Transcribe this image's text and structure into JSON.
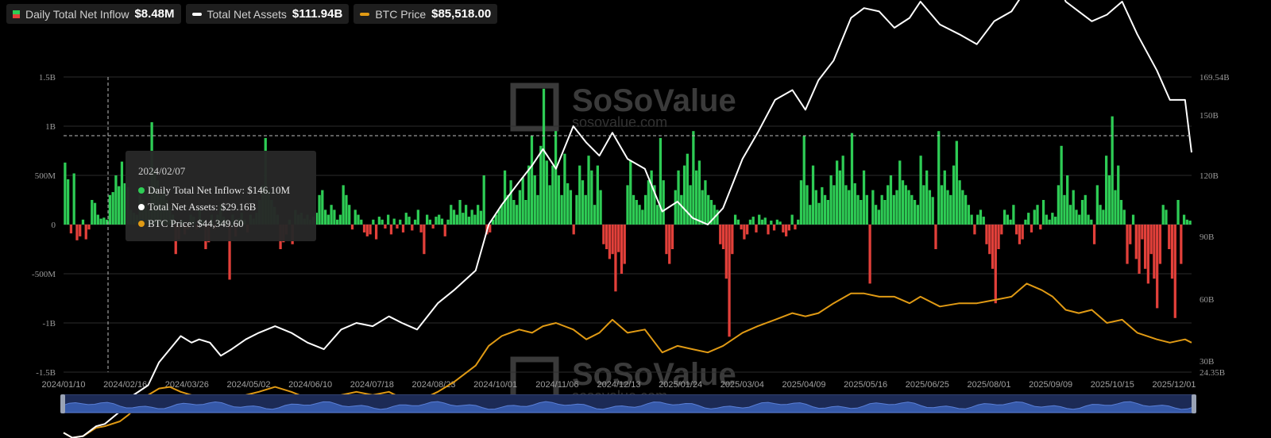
{
  "legend": {
    "inflow_label": "Daily Total Net Inflow",
    "inflow_value": "$8.48M",
    "assets_label": "Total Net Assets",
    "assets_value": "$111.94B",
    "btc_label": "BTC Price",
    "btc_value": "$85,518.00"
  },
  "watermark": {
    "brand": "SoSoValue",
    "url": "sosovalue.com"
  },
  "tooltip": {
    "date": "2024/02/07",
    "inflow": "Daily Total Net Inflow: $146.10M",
    "assets": "Total Net Assets: $29.16B",
    "btc": "BTC Price: $44,349.60"
  },
  "colors": {
    "inflow_positive": "#2ecc55",
    "inflow_negative": "#e2403a",
    "assets_line": "#ffffff",
    "btc_line": "#e09a14",
    "scroller": "#1c2a55"
  },
  "chart_data": {
    "type": "bar",
    "x_ticks": [
      "2024/01/10",
      "2024/02/16",
      "2024/03/26",
      "2024/05/02",
      "2024/06/10",
      "2024/07/18",
      "2024/08/23",
      "2024/10/01",
      "2024/11/06",
      "2024/12/13",
      "2025/01/24",
      "2025/03/04",
      "2025/04/09",
      "2025/05/16",
      "2025/06/25",
      "2025/08/01",
      "2025/09/09",
      "2025/10/15",
      "2025/12/01"
    ],
    "left_axis": {
      "ticks": [
        "1.5B",
        "1B",
        "500M",
        "0",
        "-500M",
        "-1B",
        "-1.5B"
      ],
      "values": [
        1.5,
        1,
        0.5,
        0,
        -0.5,
        -1,
        -1.5
      ],
      "unit": "B USD"
    },
    "right_axis": {
      "ticks": [
        "169.54B",
        "150B",
        "120B",
        "90B",
        "60B",
        "30B",
        "24.35B"
      ],
      "values": [
        169.54,
        150,
        120,
        90,
        60,
        30,
        24.35
      ],
      "unit": "B USD"
    },
    "series": [
      {
        "name": "Daily Total Net Inflow",
        "type": "bar",
        "axis": "left",
        "unit": "B USD",
        "values": [
          0.63,
          0.46,
          -0.09,
          0.52,
          -0.16,
          -0.12,
          0.05,
          -0.15,
          -0.05,
          0.25,
          0.22,
          0.1,
          0.06,
          0.07,
          0.05,
          0.3,
          0.33,
          0.5,
          0.39,
          0.64,
          0.42,
          0.38,
          0.15,
          0.12,
          0.1,
          0.3,
          0.25,
          0.2,
          0.15,
          1.04,
          0.55,
          0.45,
          0.3,
          0.35,
          0.25,
          0.18,
          0.1,
          -0.3,
          -0.15,
          0.05,
          -0.1,
          -0.05,
          0.1,
          0.08,
          -0.05,
          0.15,
          0.05,
          -0.25,
          -0.18,
          0.1,
          -0.05,
          0.1,
          0.2,
          0.08,
          0.05,
          -0.56,
          0.1,
          -0.12,
          0.06,
          0.12,
          0.05,
          -0.08,
          0.1,
          0.06,
          0.12,
          0.25,
          0.4,
          0.88,
          0.35,
          0.25,
          0.18,
          0.1,
          -0.25,
          -0.18,
          -0.1,
          0.05,
          -0.2,
          0.15,
          0.1,
          0.12,
          0.06,
          0.1,
          0.05,
          0.08,
          0.12,
          0.3,
          0.35,
          0.15,
          0.1,
          0.2,
          0.15,
          0.05,
          0.1,
          0.4,
          0.3,
          0.2,
          -0.05,
          0.15,
          0.1,
          0.05,
          -0.08,
          -0.12,
          -0.1,
          0.05,
          -0.15,
          0.08,
          0.05,
          -0.04,
          0.1,
          -0.1,
          0.06,
          -0.04,
          0.05,
          -0.08,
          0.12,
          0.08,
          -0.06,
          0.05,
          0.15,
          -0.08,
          -0.3,
          0.1,
          0.05,
          -0.04,
          0.08,
          0.1,
          0.06,
          -0.12,
          0.05,
          0.2,
          0.15,
          0.1,
          0.25,
          0.12,
          0.2,
          0.08,
          0.15,
          0.1,
          0.2,
          0.14,
          0.5,
          -0.1,
          -0.08,
          0.05,
          0.1,
          0.15,
          0.2,
          0.55,
          0.3,
          0.45,
          0.25,
          0.2,
          0.35,
          0.48,
          0.25,
          0.6,
          0.9,
          0.5,
          0.3,
          0.8,
          1.38,
          0.65,
          0.4,
          0.6,
          0.95,
          0.5,
          0.3,
          0.72,
          0.42,
          0.35,
          -0.1,
          0.3,
          0.6,
          0.45,
          0.3,
          0.7,
          0.55,
          0.2,
          0.6,
          0.35,
          -0.2,
          -0.25,
          -0.35,
          -0.3,
          -0.68,
          -0.28,
          -0.5,
          -0.4,
          0.4,
          0.65,
          0.3,
          0.25,
          0.2,
          0.15,
          0.3,
          0.45,
          0.55,
          0.4,
          0.2,
          0.88,
          0.45,
          -0.3,
          -0.4,
          -0.25,
          0.35,
          0.55,
          0.3,
          0.6,
          0.72,
          0.4,
          0.95,
          0.55,
          0.65,
          0.35,
          0.45,
          0.3,
          0.25,
          0.2,
          0.15,
          -0.2,
          -0.25,
          -0.55,
          -1.14,
          -0.3,
          0.1,
          0.05,
          -0.05,
          -0.15,
          -0.1,
          0.05,
          0.08,
          -0.08,
          0.1,
          0.05,
          0.07,
          -0.1,
          0.04,
          -0.06,
          0.05,
          0.03,
          -0.08,
          -0.12,
          -0.06,
          0.1,
          -0.05,
          0.05,
          0.45,
          0.9,
          0.4,
          0.2,
          0.6,
          0.35,
          0.22,
          0.38,
          0.3,
          0.25,
          0.5,
          0.4,
          0.65,
          0.55,
          0.7,
          0.4,
          0.35,
          0.93,
          0.42,
          0.3,
          0.25,
          0.55,
          0.3,
          -0.6,
          0.35,
          0.2,
          0.15,
          0.3,
          0.25,
          0.4,
          0.5,
          0.3,
          0.35,
          0.65,
          0.45,
          0.4,
          0.35,
          0.3,
          0.25,
          0.2,
          0.7,
          0.4,
          0.55,
          0.35,
          0.28,
          -0.25,
          0.95,
          0.4,
          0.55,
          0.35,
          0.3,
          0.6,
          0.85,
          0.45,
          0.35,
          0.3,
          0.2,
          0.1,
          -0.1,
          0.1,
          0.15,
          0.08,
          -0.2,
          -0.3,
          -0.45,
          -0.8,
          -0.25,
          -0.1,
          0.15,
          0.1,
          0.05,
          0.2,
          -0.1,
          -0.2,
          -0.15,
          0.05,
          0.12,
          -0.08,
          0.15,
          0.2,
          -0.05,
          0.25,
          0.1,
          0.05,
          0.12,
          0.08,
          0.4,
          0.8,
          0.3,
          0.5,
          0.2,
          0.35,
          0.15,
          0.1,
          0.25,
          0.3,
          0.1,
          0.05,
          -0.2,
          0.4,
          0.2,
          0.15,
          0.7,
          0.5,
          1.1,
          0.35,
          0.6,
          0.25,
          0.15,
          -0.4,
          -0.2,
          0.1,
          -0.35,
          -0.5,
          -0.15,
          -0.45,
          -0.6,
          -0.3,
          -0.55,
          -0.85,
          -0.4,
          0.2,
          0.15,
          -0.25,
          -0.55,
          -0.95,
          0.25,
          -0.4,
          0.1,
          0.05,
          0.04
        ]
      },
      {
        "name": "Total Net Assets",
        "type": "line",
        "axis": "right",
        "unit": "B USD",
        "points": [
          [
            0,
            26.5
          ],
          [
            8,
            25.0
          ],
          [
            18,
            25.5
          ],
          [
            30,
            28.5
          ],
          [
            38,
            29.2
          ],
          [
            52,
            33
          ],
          [
            60,
            37
          ],
          [
            78,
            41
          ],
          [
            88,
            48
          ],
          [
            98,
            52
          ],
          [
            108,
            56
          ],
          [
            118,
            54
          ],
          [
            125,
            55
          ],
          [
            135,
            54
          ],
          [
            145,
            50
          ],
          [
            155,
            52
          ],
          [
            168,
            55
          ],
          [
            180,
            57
          ],
          [
            195,
            59
          ],
          [
            210,
            57
          ],
          [
            225,
            54
          ],
          [
            240,
            52
          ],
          [
            256,
            58
          ],
          [
            270,
            60
          ],
          [
            285,
            59
          ],
          [
            300,
            62
          ],
          [
            312,
            60
          ],
          [
            326,
            58
          ],
          [
            345,
            66
          ],
          [
            360,
            70
          ],
          [
            380,
            76
          ],
          [
            392,
            90
          ],
          [
            404,
            96
          ],
          [
            420,
            103
          ],
          [
            432,
            108
          ],
          [
            442,
            113
          ],
          [
            454,
            107
          ],
          [
            470,
            120
          ],
          [
            482,
            115
          ],
          [
            494,
            111
          ],
          [
            506,
            118
          ],
          [
            520,
            110
          ],
          [
            536,
            107
          ],
          [
            552,
            94
          ],
          [
            566,
            97
          ],
          [
            580,
            92
          ],
          [
            594,
            90
          ],
          [
            608,
            95
          ],
          [
            626,
            110
          ],
          [
            640,
            118
          ],
          [
            656,
            128
          ],
          [
            672,
            131
          ],
          [
            684,
            125
          ],
          [
            696,
            134
          ],
          [
            710,
            140
          ],
          [
            726,
            153
          ],
          [
            738,
            156
          ],
          [
            752,
            155
          ],
          [
            766,
            150
          ],
          [
            780,
            153
          ],
          [
            790,
            158
          ],
          [
            808,
            151
          ],
          [
            826,
            148
          ],
          [
            842,
            145
          ],
          [
            858,
            152
          ],
          [
            874,
            155
          ],
          [
            888,
            162
          ],
          [
            902,
            169
          ],
          [
            912,
            168
          ],
          [
            924,
            158
          ],
          [
            936,
            155
          ],
          [
            948,
            152
          ],
          [
            962,
            154
          ],
          [
            976,
            158
          ],
          [
            990,
            148
          ],
          [
            1008,
            137
          ],
          [
            1020,
            128
          ],
          [
            1034,
            128
          ],
          [
            1040,
            112
          ]
        ]
      },
      {
        "name": "BTC Price",
        "type": "line",
        "axis": "right",
        "unit": "B USD",
        "points": [
          [
            0,
            26.5
          ],
          [
            8,
            25.0
          ],
          [
            18,
            25.5
          ],
          [
            30,
            28
          ],
          [
            38,
            28.5
          ],
          [
            52,
            30
          ],
          [
            60,
            32
          ],
          [
            78,
            38
          ],
          [
            88,
            40
          ],
          [
            98,
            40.5
          ],
          [
            108,
            39
          ],
          [
            118,
            38
          ],
          [
            135,
            37
          ],
          [
            150,
            36
          ],
          [
            168,
            38
          ],
          [
            180,
            39
          ],
          [
            195,
            40.5
          ],
          [
            210,
            39
          ],
          [
            225,
            37
          ],
          [
            240,
            35
          ],
          [
            256,
            38
          ],
          [
            270,
            39
          ],
          [
            285,
            38
          ],
          [
            300,
            39
          ],
          [
            312,
            37
          ],
          [
            326,
            36
          ],
          [
            345,
            39
          ],
          [
            360,
            42
          ],
          [
            380,
            47
          ],
          [
            392,
            53
          ],
          [
            404,
            56
          ],
          [
            420,
            58
          ],
          [
            432,
            57
          ],
          [
            442,
            59
          ],
          [
            454,
            60
          ],
          [
            470,
            58
          ],
          [
            482,
            55
          ],
          [
            494,
            57
          ],
          [
            506,
            61
          ],
          [
            520,
            57
          ],
          [
            536,
            58
          ],
          [
            552,
            51
          ],
          [
            566,
            53
          ],
          [
            580,
            52
          ],
          [
            594,
            51
          ],
          [
            608,
            53
          ],
          [
            626,
            57
          ],
          [
            640,
            59
          ],
          [
            656,
            61
          ],
          [
            672,
            63
          ],
          [
            684,
            62
          ],
          [
            696,
            63
          ],
          [
            710,
            66
          ],
          [
            726,
            69
          ],
          [
            738,
            69
          ],
          [
            752,
            68
          ],
          [
            766,
            68
          ],
          [
            780,
            66
          ],
          [
            790,
            68
          ],
          [
            808,
            65
          ],
          [
            826,
            66
          ],
          [
            842,
            66
          ],
          [
            858,
            67
          ],
          [
            874,
            68
          ],
          [
            888,
            72
          ],
          [
            902,
            70
          ],
          [
            912,
            68
          ],
          [
            924,
            64
          ],
          [
            936,
            63
          ],
          [
            948,
            64
          ],
          [
            962,
            60
          ],
          [
            976,
            61
          ],
          [
            990,
            57
          ],
          [
            1008,
            55
          ],
          [
            1020,
            54
          ],
          [
            1034,
            55
          ],
          [
            1040,
            54
          ]
        ]
      }
    ]
  }
}
